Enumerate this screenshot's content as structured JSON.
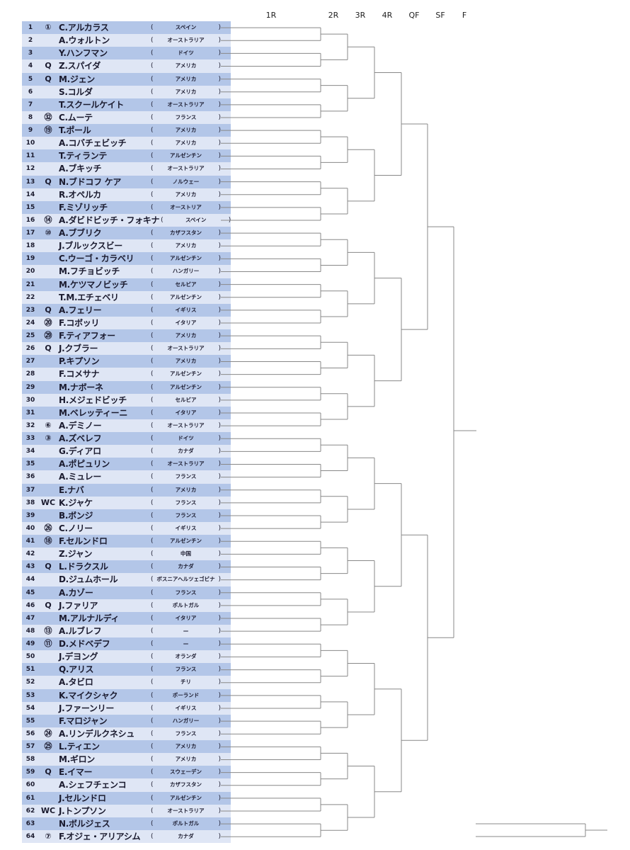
{
  "rounds": [
    "1R",
    "2R",
    "3R",
    "4R",
    "QF",
    "SF",
    "F"
  ],
  "colors": {
    "row_dark": "#b3c6e8",
    "row_light": "#dfe6f5",
    "bracket_line": "#888888"
  },
  "players": [
    {
      "num": "1",
      "seed": "①",
      "name": "C.アルカラス",
      "country": "スペイン"
    },
    {
      "num": "2",
      "seed": "",
      "name": "A.ウォルトン",
      "country": "オーストラリア"
    },
    {
      "num": "3",
      "seed": "",
      "name": "Y.ハンフマン",
      "country": "ドイツ"
    },
    {
      "num": "4",
      "seed": "Q",
      "name": "Z.スパイダ",
      "country": "アメリカ"
    },
    {
      "num": "5",
      "seed": "Q",
      "name": "M.ジェン",
      "country": "アメリカ"
    },
    {
      "num": "6",
      "seed": "",
      "name": "S.コルダ",
      "country": "アメリカ"
    },
    {
      "num": "7",
      "seed": "",
      "name": "T.スクールケイト",
      "country": "オーストラリア"
    },
    {
      "num": "8",
      "seed": "㉜",
      "name": "C.ムーテ",
      "country": "フランス"
    },
    {
      "num": "9",
      "seed": "⑲",
      "name": "T.ポール",
      "country": "アメリカ"
    },
    {
      "num": "10",
      "seed": "",
      "name": "A.コバチェビッチ",
      "country": "アメリカ"
    },
    {
      "num": "11",
      "seed": "",
      "name": "T.ティランテ",
      "country": "アルゼンチン"
    },
    {
      "num": "12",
      "seed": "",
      "name": "A.ブキッチ",
      "country": "オーストラリア"
    },
    {
      "num": "13",
      "seed": "Q",
      "name": "N.ブドコフ ケア",
      "country": "ノルウェー"
    },
    {
      "num": "14",
      "seed": "",
      "name": "R.オペルカ",
      "country": "アメリカ"
    },
    {
      "num": "15",
      "seed": "",
      "name": "F.ミゾリッチ",
      "country": "オーストリア"
    },
    {
      "num": "16",
      "seed": "⑭",
      "name": "A.ダビドビッチ・フォキナ",
      "country": "スペイン"
    },
    {
      "num": "17",
      "seed": "⑩",
      "name": "A.ブブリク",
      "country": "カザフスタン"
    },
    {
      "num": "18",
      "seed": "",
      "name": "J.ブルックスビー",
      "country": "アメリカ"
    },
    {
      "num": "19",
      "seed": "",
      "name": "C.ウーゴ・カラベリ",
      "country": "アルゼンチン"
    },
    {
      "num": "20",
      "seed": "",
      "name": "M.フチョビッチ",
      "country": "ハンガリー"
    },
    {
      "num": "21",
      "seed": "",
      "name": "M.ケツマノビッチ",
      "country": "セルビア"
    },
    {
      "num": "22",
      "seed": "",
      "name": "T.M.エチェベリ",
      "country": "アルゼンチン"
    },
    {
      "num": "23",
      "seed": "Q",
      "name": "A.フェリー",
      "country": "イギリス"
    },
    {
      "num": "24",
      "seed": "⑳",
      "name": "F.コボッリ",
      "country": "イタリア"
    },
    {
      "num": "25",
      "seed": "㉙",
      "name": "F.ティアフォー",
      "country": "アメリカ"
    },
    {
      "num": "26",
      "seed": "Q",
      "name": "J.クブラー",
      "country": "オーストラリア"
    },
    {
      "num": "27",
      "seed": "",
      "name": "P.キプソン",
      "country": "アメリカ"
    },
    {
      "num": "28",
      "seed": "",
      "name": "F.コメサナ",
      "country": "アルゼンチン"
    },
    {
      "num": "29",
      "seed": "",
      "name": "M.ナボーネ",
      "country": "アルゼンチン"
    },
    {
      "num": "30",
      "seed": "",
      "name": "H.メジェドビッチ",
      "country": "セルビア"
    },
    {
      "num": "31",
      "seed": "",
      "name": "M.ベレッティーニ",
      "country": "イタリア"
    },
    {
      "num": "32",
      "seed": "⑥",
      "name": "A.デミノー",
      "country": "オーストラリア"
    },
    {
      "num": "33",
      "seed": "③",
      "name": "A.ズベレフ",
      "country": "ドイツ"
    },
    {
      "num": "34",
      "seed": "",
      "name": "G.ディアロ",
      "country": "カナダ"
    },
    {
      "num": "35",
      "seed": "",
      "name": "A.ポピュリン",
      "country": "オーストラリア"
    },
    {
      "num": "36",
      "seed": "",
      "name": "A.ミュレー",
      "country": "フランス"
    },
    {
      "num": "37",
      "seed": "",
      "name": "E.ナバ",
      "country": "アメリカ"
    },
    {
      "num": "38",
      "seed": "WC",
      "name": "K.ジャケ",
      "country": "フランス"
    },
    {
      "num": "39",
      "seed": "",
      "name": "B.ボンジ",
      "country": "フランス"
    },
    {
      "num": "40",
      "seed": "㉖",
      "name": "C.ノリー",
      "country": "イギリス"
    },
    {
      "num": "41",
      "seed": "⑱",
      "name": "F.セルンドロ",
      "country": "アルゼンチン"
    },
    {
      "num": "42",
      "seed": "",
      "name": "Z.ジャン",
      "country": "中国"
    },
    {
      "num": "43",
      "seed": "Q",
      "name": "L.ドラクスル",
      "country": "カナダ"
    },
    {
      "num": "44",
      "seed": "",
      "name": "D.ジュムホール",
      "country": "ボスニアヘルツェゴビナ"
    },
    {
      "num": "45",
      "seed": "",
      "name": "A.カゾー",
      "country": "フランス"
    },
    {
      "num": "46",
      "seed": "Q",
      "name": "J.ファリア",
      "country": "ポルトガル"
    },
    {
      "num": "47",
      "seed": "",
      "name": "M.アルナルディ",
      "country": "イタリア"
    },
    {
      "num": "48",
      "seed": "⑬",
      "name": "A.ルブレフ",
      "country": "—"
    },
    {
      "num": "49",
      "seed": "⑪",
      "name": "D.メドベデフ",
      "country": "—"
    },
    {
      "num": "50",
      "seed": "",
      "name": "J.デヨング",
      "country": "オランダ"
    },
    {
      "num": "51",
      "seed": "",
      "name": "Q.アリス",
      "country": "フランス"
    },
    {
      "num": "52",
      "seed": "",
      "name": "A.タビロ",
      "country": "チリ"
    },
    {
      "num": "53",
      "seed": "",
      "name": "K.マイクシャク",
      "country": "ポーランド"
    },
    {
      "num": "54",
      "seed": "",
      "name": "J.ファーンリー",
      "country": "イギリス"
    },
    {
      "num": "55",
      "seed": "",
      "name": "F.マロジャン",
      "country": "ハンガリー"
    },
    {
      "num": "56",
      "seed": "㉔",
      "name": "A.リンデルクネシュ",
      "country": "フランス"
    },
    {
      "num": "57",
      "seed": "㉕",
      "name": "L.ティエン",
      "country": "アメリカ"
    },
    {
      "num": "58",
      "seed": "",
      "name": "M.ギロン",
      "country": "アメリカ"
    },
    {
      "num": "59",
      "seed": "Q",
      "name": "E.イマー",
      "country": "スウェーデン"
    },
    {
      "num": "60",
      "seed": "",
      "name": "A.シェフチェンコ",
      "country": "カザフスタン"
    },
    {
      "num": "61",
      "seed": "",
      "name": "J.セルンドロ",
      "country": "アルゼンチン"
    },
    {
      "num": "62",
      "seed": "WC",
      "name": "J.トンプソン",
      "country": "オーストラリア"
    },
    {
      "num": "63",
      "seed": "",
      "name": "N.ボルジェス",
      "country": "ポルトガル"
    },
    {
      "num": "64",
      "seed": "⑦",
      "name": "F.オジェ・アリアシム",
      "country": "カナダ"
    }
  ]
}
